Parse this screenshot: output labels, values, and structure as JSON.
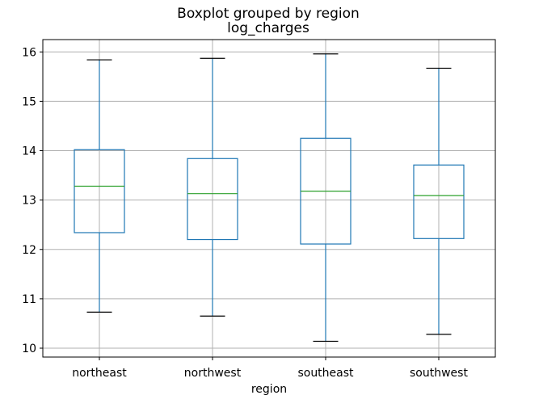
{
  "chart_data": {
    "type": "boxplot",
    "suptitle": "Boxplot grouped by region",
    "title": "log_charges",
    "xlabel": "region",
    "ylabel": "",
    "ylim": [
      9.82,
      16.25
    ],
    "yticks": [
      10,
      11,
      12,
      13,
      14,
      15,
      16
    ],
    "grid": true,
    "categories": [
      "northeast",
      "northwest",
      "southeast",
      "southwest"
    ],
    "boxes": [
      {
        "name": "northeast",
        "whislo": 10.73,
        "q1": 12.34,
        "med": 13.28,
        "q3": 14.02,
        "whishi": 15.84
      },
      {
        "name": "northwest",
        "whislo": 10.65,
        "q1": 12.2,
        "med": 13.13,
        "q3": 13.84,
        "whishi": 15.87
      },
      {
        "name": "southeast",
        "whislo": 10.14,
        "q1": 12.11,
        "med": 13.18,
        "q3": 14.25,
        "whishi": 15.96
      },
      {
        "name": "southwest",
        "whislo": 10.28,
        "q1": 12.22,
        "med": 13.09,
        "q3": 13.71,
        "whishi": 15.67
      }
    ],
    "colors": {
      "box": "#1f77b4",
      "median": "#2ca02c",
      "cap": "#000000",
      "grid": "#b0b0b0"
    }
  }
}
